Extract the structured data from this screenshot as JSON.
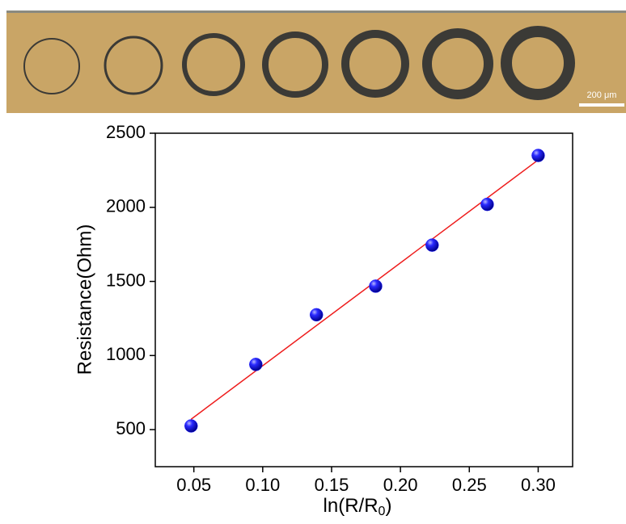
{
  "micrograph": {
    "scale_bar": "200 μm"
  },
  "chart_data": {
    "type": "scatter",
    "xlabel": [
      "ln(R/R",
      "0",
      ")"
    ],
    "ylabel": "Resistance(Ohm)",
    "series": [
      {
        "color": "#1a1aff",
        "x": [
          0.048,
          0.095,
          0.139,
          0.182,
          0.223,
          0.263,
          0.3
        ],
        "values": [
          525,
          940,
          1275,
          1468,
          1745,
          2020,
          2350
        ]
      }
    ],
    "fit": {
      "color": "#ee1c1c",
      "x": [
        0.048,
        0.3
      ],
      "values": [
        570,
        2320
      ]
    },
    "xlim": [
      0.022,
      0.325
    ],
    "ylim": [
      250,
      2500
    ],
    "xticks": [
      0.05,
      {
        "value": 0.1,
        "label": "0.10"
      },
      0.15,
      {
        "value": 0.2,
        "label": "0.20"
      },
      0.25,
      {
        "value": 0.3,
        "label": "0.30"
      }
    ],
    "yticks": [
      500,
      1000,
      1500,
      2000,
      2500
    ]
  }
}
